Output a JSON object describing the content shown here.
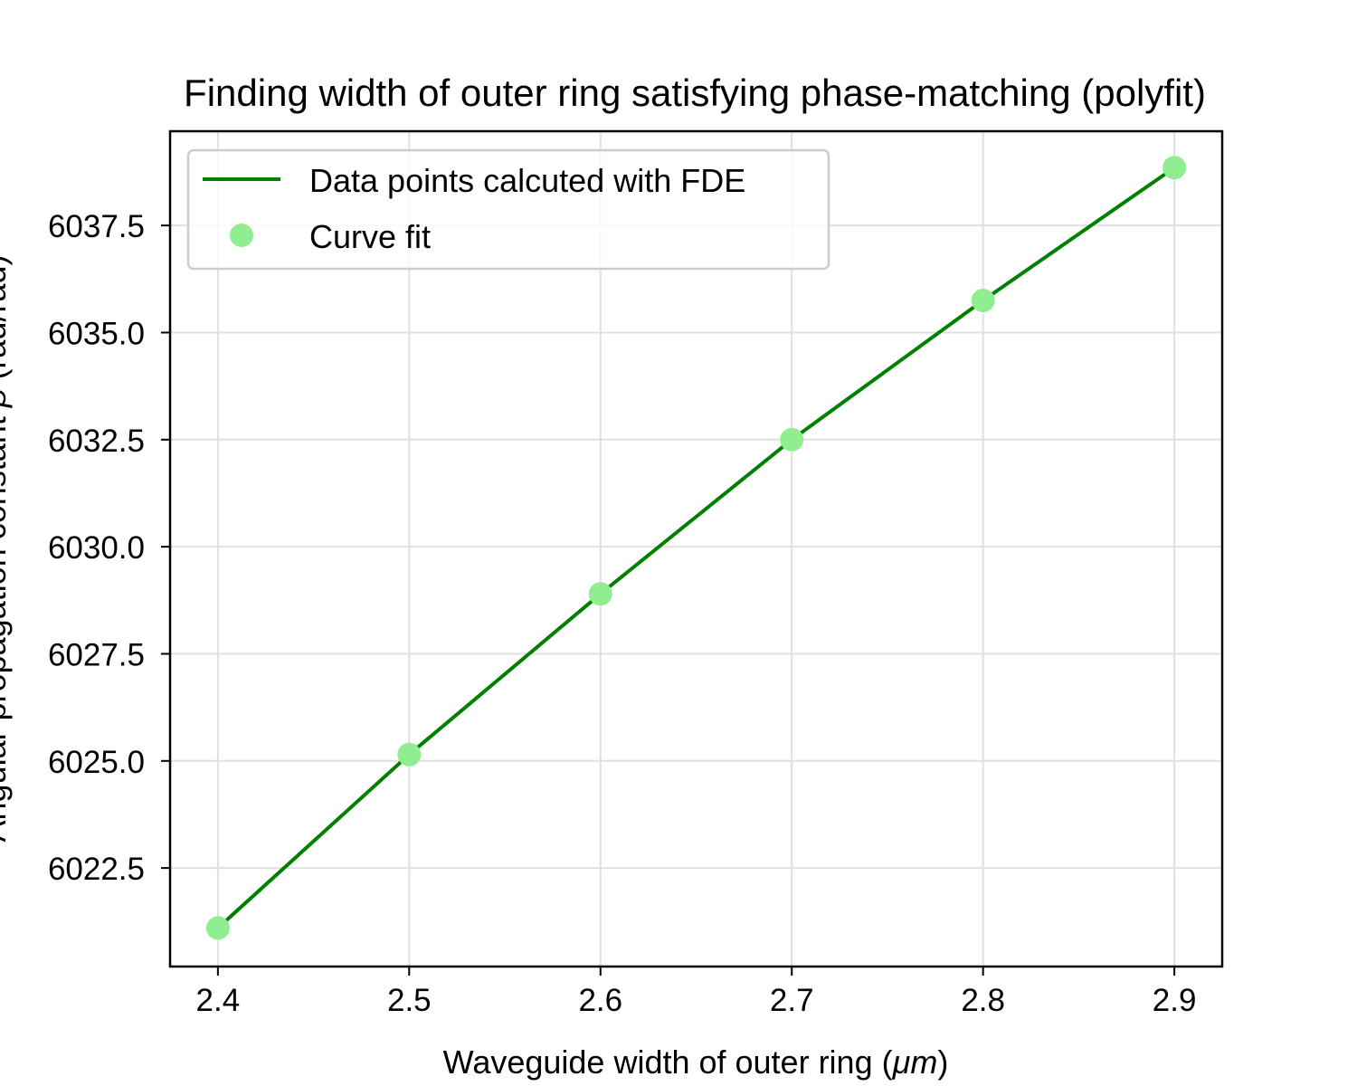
{
  "chart_data": {
    "type": "line",
    "title": "Finding width of outer ring satisfying phase-matching (polyfit)",
    "xlabel_text": "Waveguide width of outer ring (",
    "xlabel_unit": "μm",
    "xlabel_close": ")",
    "ylabel_text": "Angular propagation constant ",
    "ylabel_symbol": "β",
    "ylabel_unit": " (rad/rad)",
    "xlim": [
      2.375,
      2.925
    ],
    "ylim": [
      6020.2,
      6039.7
    ],
    "xticks": [
      2.4,
      2.5,
      2.6,
      2.7,
      2.8,
      2.9
    ],
    "xtick_labels": [
      "2.4",
      "2.5",
      "2.6",
      "2.7",
      "2.8",
      "2.9"
    ],
    "yticks": [
      6022.5,
      6025.0,
      6027.5,
      6030.0,
      6032.5,
      6035.0,
      6037.5
    ],
    "ytick_labels": [
      "6022.5",
      "6025.0",
      "6027.5",
      "6030.0",
      "6032.5",
      "6035.0",
      "6037.5"
    ],
    "grid": true,
    "legend_position": "upper-left",
    "series": [
      {
        "name": "Data points calcuted with FDE",
        "style": "line",
        "color": "#008000",
        "x": [
          2.4,
          2.5,
          2.6,
          2.7,
          2.8,
          2.9
        ],
        "y": [
          6021.1,
          6025.15,
          6028.9,
          6032.5,
          6035.75,
          6038.85
        ]
      },
      {
        "name": "Curve fit",
        "style": "markers",
        "color": "#90ee90",
        "x": [
          2.4,
          2.5,
          2.6,
          2.7,
          2.8,
          2.9
        ],
        "y": [
          6021.1,
          6025.15,
          6028.9,
          6032.5,
          6035.75,
          6038.85
        ]
      }
    ]
  }
}
